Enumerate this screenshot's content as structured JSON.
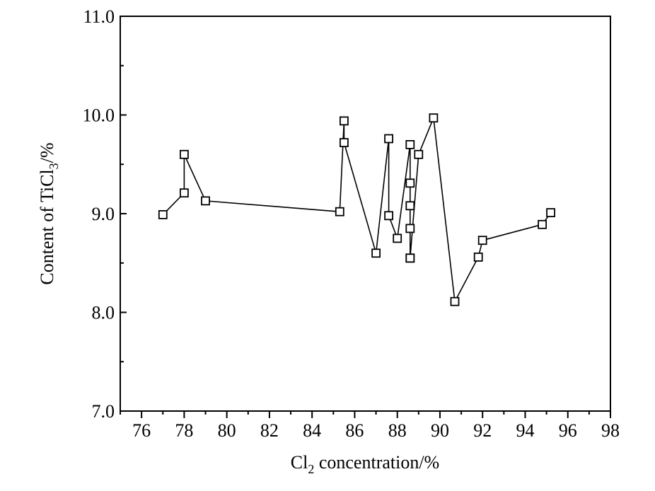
{
  "chart_data": {
    "type": "line",
    "title": "",
    "xlabel": "Cl2 concentration/%",
    "ylabel": "Content of TiCl3/%",
    "xlim": [
      75,
      98
    ],
    "ylim": [
      7.0,
      11.0
    ],
    "x_ticks": [
      76,
      78,
      80,
      82,
      84,
      86,
      88,
      90,
      92,
      94,
      96,
      98
    ],
    "y_ticks": [
      7.0,
      8.0,
      9.0,
      10.0,
      11.0
    ],
    "x_tick_labels": [
      "76",
      "78",
      "80",
      "82",
      "84",
      "86",
      "88",
      "90",
      "92",
      "94",
      "96",
      "98"
    ],
    "y_tick_labels": [
      "7.0",
      "8.0",
      "9.0",
      "10.0",
      "11.0"
    ],
    "grid": false,
    "legend": "none",
    "marker": "open-square",
    "color": "#000000",
    "series": [
      {
        "x": [
          77.0,
          78.0,
          78.0,
          79.0,
          85.3,
          85.5,
          85.5,
          87.0,
          87.6,
          87.6,
          88.0,
          88.6,
          88.6,
          88.6,
          88.6,
          88.6,
          88.6,
          89.0,
          89.7,
          90.7,
          91.8,
          92.0,
          94.8,
          95.2
        ],
        "y": [
          8.99,
          9.21,
          9.6,
          9.13,
          9.02,
          9.94,
          9.72,
          8.6,
          9.76,
          8.98,
          8.75,
          9.7,
          9.31,
          9.08,
          8.85,
          8.55,
          8.55,
          9.6,
          9.97,
          8.11,
          8.56,
          8.73,
          8.89,
          9.01
        ]
      }
    ],
    "xlabel_parts": {
      "pre": "Cl",
      "sub": "2",
      "post": " concentration/%"
    },
    "ylabel_parts": {
      "pre": "Content of TiCl",
      "sub": "3",
      "post": "/%"
    }
  }
}
